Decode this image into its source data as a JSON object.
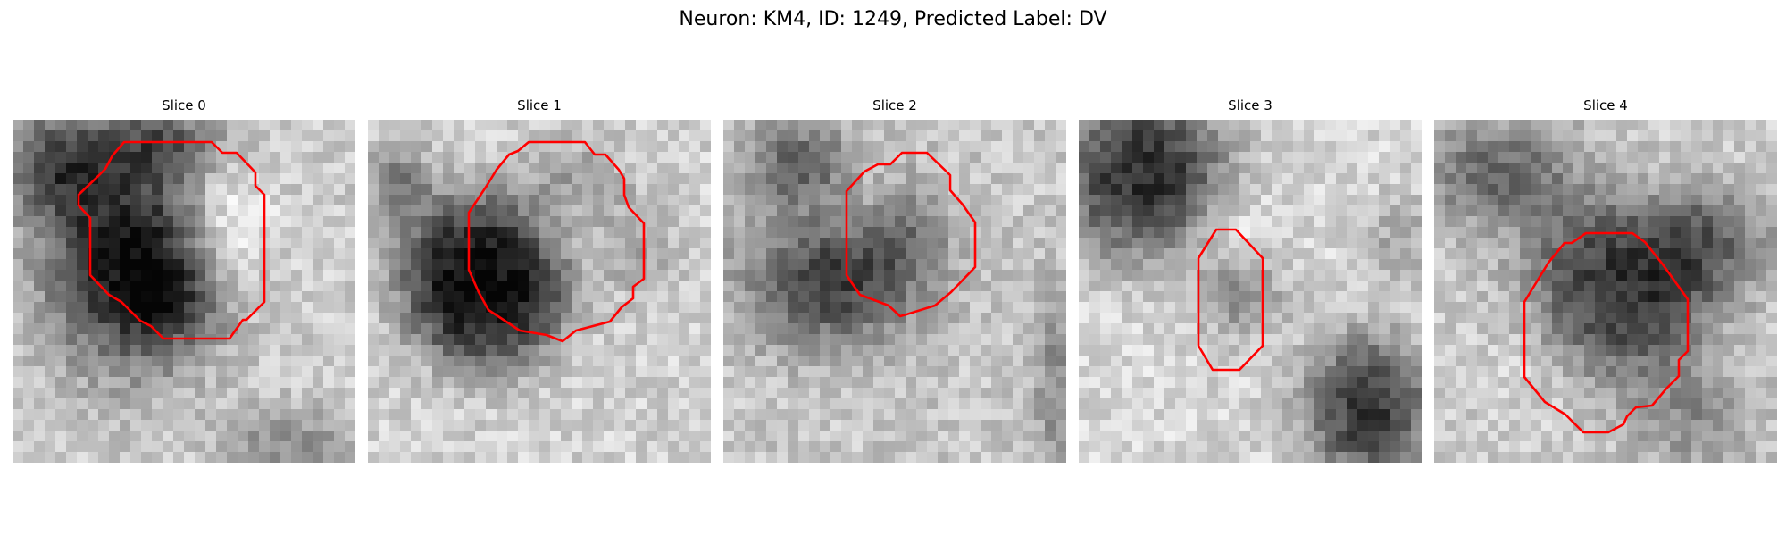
{
  "figure": {
    "title": "Neuron: KM4, ID: 1249, Predicted Label: DV"
  },
  "panels": [
    {
      "title": "Slice 0"
    },
    {
      "title": "Slice 1"
    },
    {
      "title": "Slice 2"
    },
    {
      "title": "Slice 3"
    },
    {
      "title": "Slice 4"
    }
  ],
  "colors": {
    "contour": "#ff0000",
    "background": "#ffffff"
  },
  "colormap": "grayscale"
}
